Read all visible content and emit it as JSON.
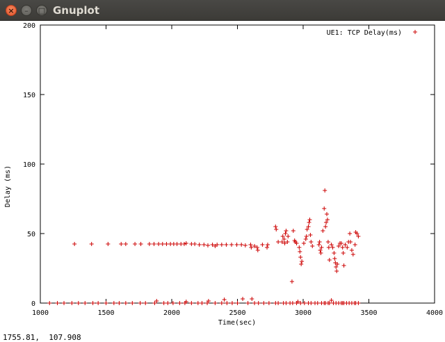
{
  "window": {
    "title": "Gnuplot",
    "close_glyph": "×",
    "minimize_glyph": "–",
    "maximize_glyph": "□"
  },
  "status": {
    "coords": "1755.81,  107.908"
  },
  "colors": {
    "series": "#cc0000",
    "titlebar": "#3c3b37",
    "close_button": "#e95420"
  },
  "chart_data": {
    "type": "scatter",
    "xlabel": "Time(sec)",
    "ylabel": "Delay (ms)",
    "xlim": [
      1000,
      4000
    ],
    "ylim": [
      0,
      200
    ],
    "xticks": [
      1000,
      1500,
      2000,
      2500,
      3000,
      3500,
      4000
    ],
    "yticks": [
      0,
      50,
      100,
      150,
      200
    ],
    "grid": false,
    "legend_position": "top-right",
    "series": [
      {
        "name": "UE1: TCP Delay(ms)",
        "marker": "+",
        "points": [
          [
            1260,
            42.5
          ],
          [
            1390,
            42.5
          ],
          [
            1515,
            42.5
          ],
          [
            1615,
            42.5
          ],
          [
            1650,
            42.5
          ],
          [
            1720,
            42.5
          ],
          [
            1765,
            42.5
          ],
          [
            1830,
            42.5
          ],
          [
            1865,
            42.5
          ],
          [
            1900,
            42.5
          ],
          [
            1930,
            42.5
          ],
          [
            1960,
            42.5
          ],
          [
            1990,
            42.5
          ],
          [
            2015,
            42.5
          ],
          [
            2040,
            42.5
          ],
          [
            2070,
            42.5
          ],
          [
            2095,
            42.5
          ],
          [
            2110,
            43
          ],
          [
            2150,
            42.5
          ],
          [
            2175,
            42.5
          ],
          [
            2210,
            42
          ],
          [
            2245,
            42
          ],
          [
            2275,
            41.5
          ],
          [
            2310,
            42
          ],
          [
            2330,
            41
          ],
          [
            2345,
            42
          ],
          [
            2380,
            42
          ],
          [
            2415,
            42
          ],
          [
            2455,
            42
          ],
          [
            2495,
            42
          ],
          [
            2530,
            42
          ],
          [
            2560,
            41.5
          ],
          [
            2600,
            42
          ],
          [
            2605,
            40
          ],
          [
            2630,
            41
          ],
          [
            2650,
            40
          ],
          [
            2655,
            38
          ],
          [
            2690,
            42
          ],
          [
            2725,
            40
          ],
          [
            2730,
            42
          ],
          [
            2790,
            55
          ],
          [
            2795,
            53
          ],
          [
            2810,
            44
          ],
          [
            2840,
            44
          ],
          [
            2845,
            48
          ],
          [
            2855,
            46
          ],
          [
            2860,
            43
          ],
          [
            2865,
            50
          ],
          [
            2870,
            52
          ],
          [
            2880,
            44
          ],
          [
            2885,
            48
          ],
          [
            2925,
            52
          ],
          [
            2935,
            45
          ],
          [
            2940,
            44
          ],
          [
            2950,
            43
          ],
          [
            2970,
            40
          ],
          [
            2975,
            37
          ],
          [
            2980,
            33
          ],
          [
            2985,
            28
          ],
          [
            2990,
            30
          ],
          [
            3005,
            43
          ],
          [
            3020,
            46
          ],
          [
            3025,
            48
          ],
          [
            3030,
            53
          ],
          [
            3040,
            55
          ],
          [
            3045,
            58
          ],
          [
            3050,
            60
          ],
          [
            3055,
            49
          ],
          [
            3060,
            44
          ],
          [
            3070,
            41
          ],
          [
            3120,
            42
          ],
          [
            3125,
            44
          ],
          [
            3130,
            38
          ],
          [
            3135,
            36
          ],
          [
            3140,
            40
          ],
          [
            3150,
            52
          ],
          [
            3160,
            68
          ],
          [
            3165,
            81
          ],
          [
            3170,
            55
          ],
          [
            3175,
            58
          ],
          [
            3180,
            64
          ],
          [
            3185,
            60
          ],
          [
            3190,
            44
          ],
          [
            3195,
            40
          ],
          [
            3200,
            31
          ],
          [
            3215,
            42
          ],
          [
            3225,
            40
          ],
          [
            3235,
            36
          ],
          [
            3240,
            32
          ],
          [
            3245,
            29
          ],
          [
            3250,
            26
          ],
          [
            3255,
            23
          ],
          [
            3260,
            28
          ],
          [
            3270,
            41
          ],
          [
            3280,
            43
          ],
          [
            3290,
            43
          ],
          [
            3300,
            40
          ],
          [
            3305,
            36
          ],
          [
            3310,
            27
          ],
          [
            3320,
            42
          ],
          [
            3335,
            40
          ],
          [
            3345,
            44
          ],
          [
            3355,
            50
          ],
          [
            3360,
            44
          ],
          [
            3370,
            38
          ],
          [
            3380,
            35
          ],
          [
            3395,
            42
          ],
          [
            3400,
            51
          ],
          [
            3410,
            50
          ],
          [
            3420,
            48
          ],
          [
            2915,
            15.5
          ],
          [
            1070,
            0
          ],
          [
            1130,
            0
          ],
          [
            1180,
            0
          ],
          [
            1240,
            0
          ],
          [
            1290,
            0
          ],
          [
            1340,
            0
          ],
          [
            1400,
            0
          ],
          [
            1440,
            0
          ],
          [
            1500,
            0
          ],
          [
            1560,
            0
          ],
          [
            1600,
            0
          ],
          [
            1650,
            0
          ],
          [
            1700,
            0
          ],
          [
            1760,
            0
          ],
          [
            1800,
            0
          ],
          [
            1870,
            0
          ],
          [
            1885,
            1.5
          ],
          [
            1940,
            0
          ],
          [
            1970,
            0
          ],
          [
            2010,
            0
          ],
          [
            2060,
            0
          ],
          [
            2100,
            0
          ],
          [
            2110,
            1
          ],
          [
            2150,
            0
          ],
          [
            2200,
            0
          ],
          [
            2230,
            0
          ],
          [
            2270,
            0
          ],
          [
            2280,
            1.5
          ],
          [
            2330,
            0
          ],
          [
            2380,
            0
          ],
          [
            2400,
            2.5
          ],
          [
            2420,
            0
          ],
          [
            2460,
            0
          ],
          [
            2500,
            0
          ],
          [
            2540,
            3
          ],
          [
            2580,
            0
          ],
          [
            2610,
            3
          ],
          [
            2630,
            0
          ],
          [
            2660,
            0
          ],
          [
            2700,
            0
          ],
          [
            2740,
            0
          ],
          [
            2790,
            0
          ],
          [
            2810,
            0
          ],
          [
            2850,
            0
          ],
          [
            2870,
            0
          ],
          [
            2900,
            0
          ],
          [
            2920,
            0
          ],
          [
            2950,
            0
          ],
          [
            2960,
            1
          ],
          [
            2980,
            0
          ],
          [
            3010,
            0
          ],
          [
            3040,
            0
          ],
          [
            3060,
            0
          ],
          [
            3090,
            0
          ],
          [
            3110,
            0
          ],
          [
            3140,
            0
          ],
          [
            3160,
            0
          ],
          [
            3170,
            0
          ],
          [
            3190,
            0
          ],
          [
            3200,
            0
          ],
          [
            3215,
            2
          ],
          [
            3230,
            0
          ],
          [
            3250,
            0
          ],
          [
            3270,
            0
          ],
          [
            3290,
            0
          ],
          [
            3300,
            0
          ],
          [
            3310,
            0
          ],
          [
            3330,
            0
          ],
          [
            3350,
            0
          ],
          [
            3370,
            0
          ],
          [
            3390,
            0
          ],
          [
            3400,
            0
          ],
          [
            3420,
            0
          ]
        ]
      }
    ]
  }
}
